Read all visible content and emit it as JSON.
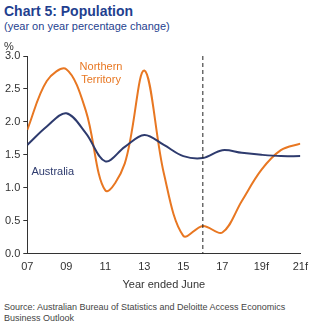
{
  "chart_data": {
    "type": "line",
    "title": "Chart 5: Population",
    "subtitle": "(year on year percentage change)",
    "y_label": "%",
    "x_label": "Year ended June",
    "source": "Source: Australian Bureau of Statistics and Deloitte Access Economics Business Outlook",
    "categories": [
      "07",
      null,
      "09",
      null,
      "11",
      null,
      "13",
      null,
      "15",
      null,
      "17",
      null,
      "19f",
      null,
      "21f"
    ],
    "series": [
      {
        "name": "Australia",
        "color": "#2e3b6e",
        "values": [
          1.65,
          1.93,
          2.13,
          1.83,
          1.4,
          1.62,
          1.8,
          1.65,
          1.48,
          1.45,
          1.57,
          1.53,
          1.5,
          1.48,
          1.48
        ]
      },
      {
        "name": "Northern Territory",
        "color": "#e87722",
        "values": [
          1.88,
          2.62,
          2.8,
          2.17,
          0.96,
          1.37,
          2.78,
          1.22,
          0.27,
          0.42,
          0.32,
          0.8,
          1.27,
          1.57,
          1.67
        ]
      }
    ],
    "ylim": [
      0,
      3
    ],
    "yticks": [
      {
        "value": 0,
        "label": "0.0"
      },
      {
        "value": 0.5,
        "label": "0.5"
      },
      {
        "value": 1,
        "label": "1.0"
      },
      {
        "value": 1.5,
        "label": "1.5"
      },
      {
        "value": 2,
        "label": "2.0"
      },
      {
        "value": 2.5,
        "label": "2.5"
      },
      {
        "value": 3,
        "label": "3.0"
      }
    ],
    "grid": false,
    "vertical_line": {
      "category_index": 9,
      "line_style": "dashed"
    }
  }
}
